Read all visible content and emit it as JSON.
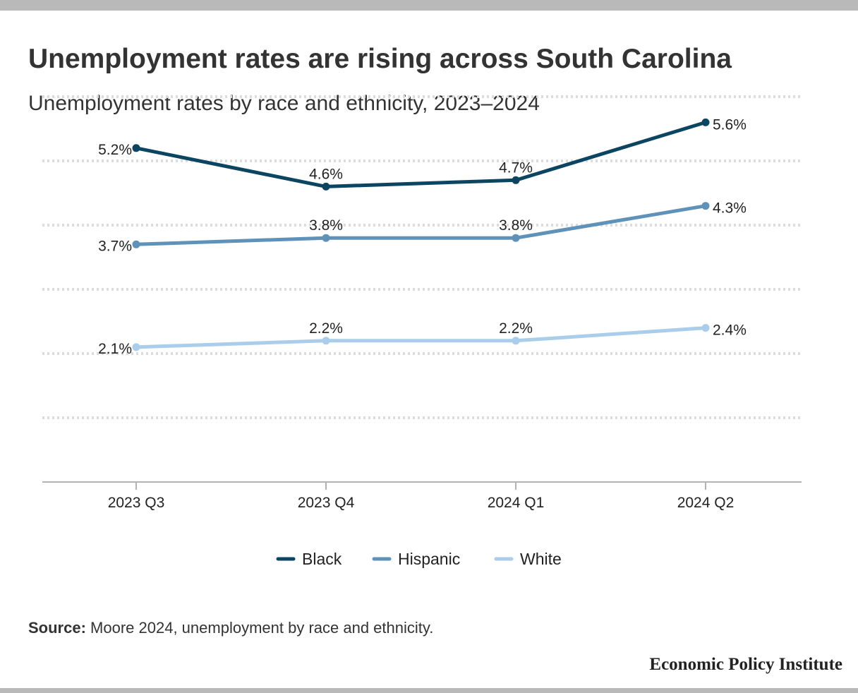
{
  "title": "Unemployment rates are rising across South Carolina",
  "subtitle": "Unemployment rates by race and ethnicity, 2023–2024",
  "source_label": "Source:",
  "source_text": "Moore 2024, unemployment by race and ethnicity.",
  "organization": "Economic Policy Institute",
  "chart_data": {
    "type": "line",
    "title": "Unemployment rates are rising across South Carolina",
    "subtitle": "Unemployment rates by race and ethnicity, 2023–2024",
    "categories": [
      "2023 Q3",
      "2023 Q4",
      "2024 Q1",
      "2024 Q2"
    ],
    "series": [
      {
        "name": "Black",
        "values": [
          5.2,
          4.6,
          4.7,
          5.6
        ],
        "labels": [
          "5.2%",
          "4.6%",
          "4.7%",
          "5.6%"
        ],
        "color": "#0b4562"
      },
      {
        "name": "Hispanic",
        "values": [
          3.7,
          3.8,
          3.8,
          4.3
        ],
        "labels": [
          "3.7%",
          "3.8%",
          "3.8%",
          "4.3%"
        ],
        "color": "#5f92b9"
      },
      {
        "name": "White",
        "values": [
          2.1,
          2.2,
          2.2,
          2.4
        ],
        "labels": [
          "2.1%",
          "2.2%",
          "2.2%",
          "2.4%"
        ],
        "color": "#a9cdea"
      }
    ],
    "ylim": [
      0,
      6
    ],
    "grid": true,
    "y_tick_labels_shown": false,
    "legend_position": "bottom-center"
  }
}
